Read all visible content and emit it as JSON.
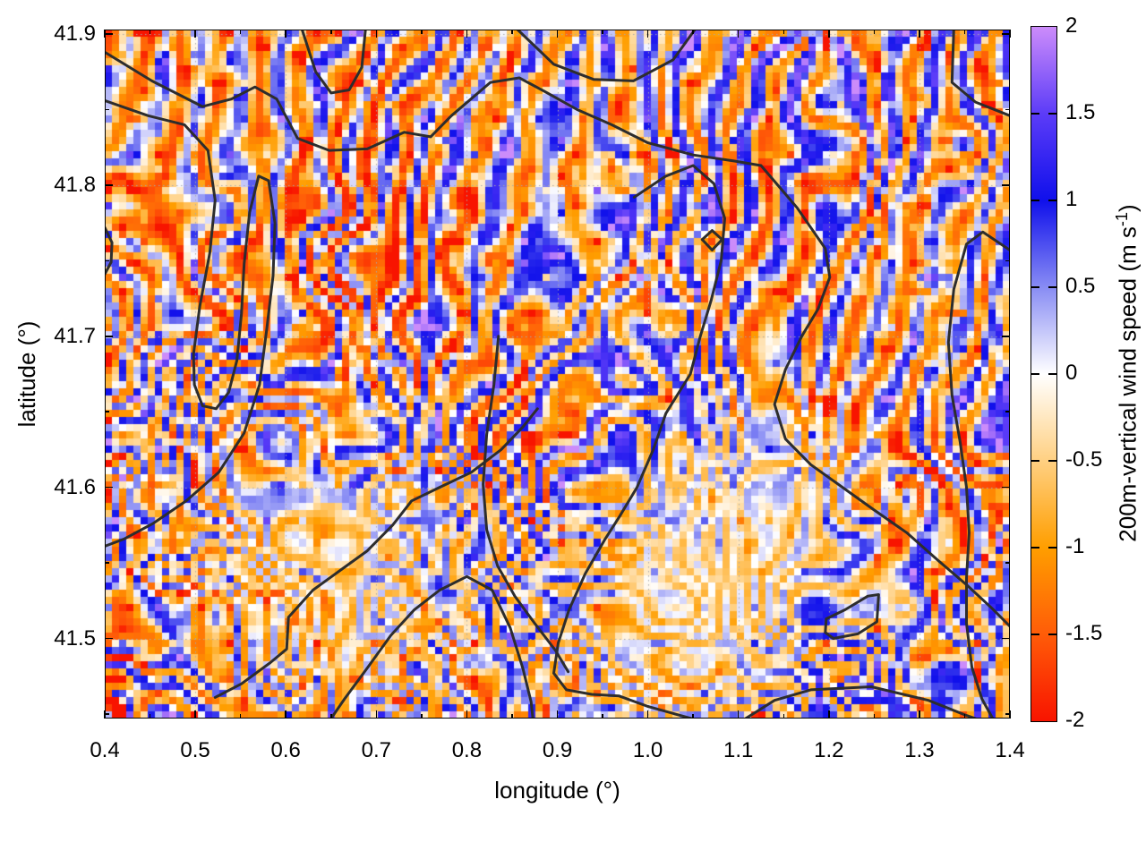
{
  "chart_data": {
    "type": "heatmap",
    "title": "",
    "xlabel": "longitude (°)",
    "ylabel": "latitude (°)",
    "x_range": [
      0.4,
      1.4
    ],
    "y_range": [
      41.447,
      41.903
    ],
    "x_major_ticks": [
      0.4,
      0.5,
      0.6,
      0.7,
      0.8,
      0.9,
      1.0,
      1.1,
      1.2,
      1.3,
      1.4
    ],
    "x_major_tick_labels": [
      "0.4",
      "0.5",
      "0.6",
      "0.7",
      "0.8",
      "0.9",
      "1.0",
      "1.1",
      "1.2",
      "1.3",
      "1.4"
    ],
    "x_minor_ticks": [
      0.45,
      0.55,
      0.65,
      0.75,
      0.85,
      0.95,
      1.05,
      1.15,
      1.25,
      1.35
    ],
    "y_major_ticks": [
      41.5,
      41.6,
      41.7,
      41.8,
      41.9
    ],
    "y_major_tick_labels": [
      "41.5",
      "41.6",
      "41.7",
      "41.8",
      "41.9"
    ],
    "y_minor_ticks": [
      41.45,
      41.55,
      41.65,
      41.75,
      41.85
    ],
    "grid": {
      "show": true,
      "style": "dotted",
      "color": "#a9a9a9"
    },
    "value_range": [
      -2,
      2
    ],
    "colorbar": {
      "label_prefix": "200m-vertical wind speed (m s",
      "label_sup": "-1",
      "label_suffix": ")",
      "range": [
        -2,
        2
      ],
      "tick_values": [
        2,
        1.5,
        1,
        0.5,
        0,
        -0.5,
        -1,
        -1.5,
        -2
      ],
      "tick_labels": [
        "2",
        "1.5",
        "1",
        "0.5",
        "0",
        "-0.5",
        "-1",
        "-1.5",
        "-2"
      ]
    },
    "colormap_stops": [
      {
        "v": -2.0,
        "c": "#f81400"
      },
      {
        "v": -1.5,
        "c": "#ff5c08"
      },
      {
        "v": -1.0,
        "c": "#ff9e00"
      },
      {
        "v": -0.5,
        "c": "#ffd082"
      },
      {
        "v": 0.0,
        "c": "#ffffff"
      },
      {
        "v": 0.5,
        "c": "#888cf4"
      },
      {
        "v": 1.0,
        "c": "#1010eb"
      },
      {
        "v": 1.5,
        "c": "#5c3cf8"
      },
      {
        "v": 2.0,
        "c": "#cc8cfa"
      }
    ],
    "field": {
      "summary": "Pixelated field (~8 px cells) of 200m vertical wind speed: narrow wavy roughly N-S/NE-SW oriented updraft streaks (blue, +0.5 to +1.5, rare violet ~+2) embedded in broader weak downdraft areas (orange, -0.3 to -1.2, rare red ~-2). A smoother pale-orange quiet zone (-0.2 to -0.5) occupies lon 0.9-1.25, lat 41.45-41.62, and a weaker one near lon 0.64, lat 41.53.",
      "generator": {
        "seed": 1337,
        "nx": 126,
        "ny": 96,
        "streak_wavelength": 5.6,
        "streak_tilt_deg": 12,
        "angle_jitter_deg": 32,
        "phase_warp": 3.1,
        "blotch_amp": 0.58,
        "base_offset": -0.18,
        "pos_gain": 1.3,
        "neg_gain": 1.02,
        "spike_amp": 2.2,
        "quiet_regions": [
          {
            "lon": 1.06,
            "lat": 41.525,
            "slon": 0.135,
            "slat": 0.075,
            "strength": 0.72,
            "fill": -0.38
          },
          {
            "lon": 0.64,
            "lat": 41.535,
            "slon": 0.1,
            "slat": 0.055,
            "strength": 0.5,
            "fill": -0.35
          }
        ]
      }
    },
    "contours": {
      "color": "#2d2d2d",
      "width": 3,
      "paths": [
        [
          [
            0.618,
            41.903
          ],
          [
            0.633,
            41.875
          ],
          [
            0.65,
            41.861
          ],
          [
            0.67,
            41.863
          ],
          [
            0.684,
            41.878
          ],
          [
            0.688,
            41.903
          ]
        ],
        [
          [
            0.856,
            41.903
          ],
          [
            0.896,
            41.88
          ],
          [
            0.94,
            41.87
          ],
          [
            0.984,
            41.869
          ],
          [
            1.028,
            41.883
          ],
          [
            1.052,
            41.903
          ]
        ],
        [
          [
            1.338,
            41.903
          ],
          [
            1.336,
            41.868
          ],
          [
            1.362,
            41.855
          ],
          [
            1.4,
            41.846
          ]
        ],
        [
          [
            0.4,
            41.888
          ],
          [
            0.452,
            41.869
          ],
          [
            0.508,
            41.852
          ],
          [
            0.54,
            41.857
          ],
          [
            0.566,
            41.865
          ],
          [
            0.59,
            41.857
          ],
          [
            0.613,
            41.831
          ],
          [
            0.648,
            41.823
          ],
          [
            0.69,
            41.824
          ],
          [
            0.731,
            41.835
          ],
          [
            0.76,
            41.832
          ],
          [
            0.783,
            41.846
          ],
          [
            0.826,
            41.868
          ],
          [
            0.858,
            41.871
          ],
          [
            0.886,
            41.862
          ],
          [
            0.922,
            41.85
          ],
          [
            0.96,
            41.84
          ],
          [
            1.0,
            41.828
          ],
          [
            1.05,
            41.82
          ],
          [
            1.095,
            41.816
          ],
          [
            1.125,
            41.813
          ],
          [
            1.165,
            41.785
          ],
          [
            1.196,
            41.758
          ],
          [
            1.201,
            41.739
          ],
          [
            1.188,
            41.718
          ],
          [
            1.17,
            41.7
          ],
          [
            1.152,
            41.678
          ],
          [
            1.14,
            41.655
          ],
          [
            1.152,
            41.632
          ],
          [
            1.18,
            41.615
          ],
          [
            1.215,
            41.6
          ],
          [
            1.25,
            41.585
          ],
          [
            1.286,
            41.57
          ],
          [
            1.32,
            41.552
          ],
          [
            1.353,
            41.535
          ],
          [
            1.38,
            41.52
          ],
          [
            1.4,
            41.508
          ]
        ],
        [
          [
            0.4,
            41.856
          ],
          [
            0.448,
            41.846
          ],
          [
            0.488,
            41.84
          ],
          [
            0.514,
            41.823
          ],
          [
            0.522,
            41.79
          ],
          [
            0.516,
            41.755
          ],
          [
            0.505,
            41.72
          ],
          [
            0.498,
            41.688
          ],
          [
            0.499,
            41.668
          ],
          [
            0.508,
            41.654
          ],
          [
            0.523,
            41.652
          ],
          [
            0.537,
            41.663
          ],
          [
            0.546,
            41.684
          ],
          [
            0.551,
            41.715
          ],
          [
            0.554,
            41.748
          ],
          [
            0.56,
            41.782
          ],
          [
            0.57,
            41.806
          ],
          [
            0.581,
            41.803
          ],
          [
            0.588,
            41.775
          ],
          [
            0.586,
            41.74
          ],
          [
            0.579,
            41.705
          ],
          [
            0.571,
            41.668
          ],
          [
            0.554,
            41.636
          ],
          [
            0.526,
            41.61
          ],
          [
            0.49,
            41.591
          ],
          [
            0.453,
            41.576
          ],
          [
            0.422,
            41.566
          ],
          [
            0.4,
            41.561
          ]
        ],
        [
          [
            0.985,
            41.792
          ],
          [
            1.02,
            41.806
          ],
          [
            1.05,
            41.813
          ],
          [
            1.073,
            41.801
          ],
          [
            1.085,
            41.778
          ],
          [
            1.081,
            41.75
          ],
          [
            1.07,
            41.724
          ],
          [
            1.058,
            41.7
          ],
          [
            1.047,
            41.675
          ],
          [
            1.02,
            41.649
          ],
          [
            1.006,
            41.625
          ],
          [
            0.988,
            41.6
          ],
          [
            0.969,
            41.581
          ],
          [
            0.952,
            41.565
          ],
          [
            0.931,
            41.543
          ],
          [
            0.913,
            41.519
          ],
          [
            0.901,
            41.497
          ],
          [
            0.896,
            41.477
          ],
          [
            0.91,
            41.466
          ],
          [
            0.938,
            41.463
          ],
          [
            0.968,
            41.462
          ],
          [
            1.0,
            41.455
          ],
          [
            1.03,
            41.45
          ],
          [
            1.048,
            41.447
          ]
        ],
        [
          [
            1.06,
            41.764
          ],
          [
            1.071,
            41.757
          ],
          [
            1.082,
            41.764
          ],
          [
            1.071,
            41.77
          ],
          [
            1.06,
            41.764
          ]
        ],
        [
          [
            0.522,
            41.461
          ],
          [
            0.551,
            41.47
          ],
          [
            0.583,
            41.484
          ],
          [
            0.601,
            41.493
          ],
          [
            0.603,
            41.514
          ],
          [
            0.63,
            41.532
          ],
          [
            0.66,
            41.545
          ],
          [
            0.69,
            41.558
          ],
          [
            0.718,
            41.575
          ],
          [
            0.739,
            41.591
          ],
          [
            0.77,
            41.6
          ],
          [
            0.805,
            41.61
          ],
          [
            0.838,
            41.625
          ],
          [
            0.862,
            41.64
          ],
          [
            0.878,
            41.652
          ]
        ],
        [
          [
            0.65,
            41.447
          ],
          [
            0.665,
            41.46
          ],
          [
            0.692,
            41.482
          ],
          [
            0.716,
            41.502
          ],
          [
            0.742,
            41.519
          ],
          [
            0.77,
            41.532
          ],
          [
            0.8,
            41.541
          ],
          [
            0.828,
            41.532
          ],
          [
            0.848,
            41.507
          ],
          [
            0.862,
            41.48
          ],
          [
            0.871,
            41.458
          ],
          [
            0.873,
            41.447
          ]
        ],
        [
          [
            0.835,
            41.7
          ],
          [
            0.83,
            41.668
          ],
          [
            0.822,
            41.635
          ],
          [
            0.818,
            41.602
          ],
          [
            0.822,
            41.572
          ],
          [
            0.834,
            41.548
          ],
          [
            0.853,
            41.528
          ],
          [
            0.875,
            41.51
          ],
          [
            0.898,
            41.492
          ],
          [
            0.912,
            41.478
          ]
        ],
        [
          [
            1.196,
            41.504
          ],
          [
            1.197,
            41.513
          ],
          [
            1.218,
            41.519
          ],
          [
            1.243,
            41.528
          ],
          [
            1.255,
            41.529
          ],
          [
            1.253,
            41.511
          ],
          [
            1.232,
            41.503
          ],
          [
            1.205,
            41.5
          ],
          [
            1.196,
            41.504
          ]
        ],
        [
          [
            1.108,
            41.447
          ],
          [
            1.14,
            41.459
          ],
          [
            1.18,
            41.466
          ],
          [
            1.247,
            41.468
          ],
          [
            1.31,
            41.459
          ],
          [
            1.352,
            41.449
          ],
          [
            1.362,
            41.447
          ]
        ],
        [
          [
            0.4,
            41.772
          ],
          [
            0.408,
            41.762
          ],
          [
            0.407,
            41.749
          ],
          [
            0.4,
            41.741
          ]
        ],
        [
          [
            1.4,
            41.757
          ],
          [
            1.37,
            41.769
          ],
          [
            1.352,
            41.761
          ],
          [
            1.338,
            41.731
          ],
          [
            1.332,
            41.696
          ],
          [
            1.336,
            41.661
          ],
          [
            1.345,
            41.63
          ],
          [
            1.352,
            41.6
          ],
          [
            1.355,
            41.57
          ],
          [
            1.352,
            41.54
          ],
          [
            1.352,
            41.51
          ],
          [
            1.358,
            41.481
          ],
          [
            1.369,
            41.46
          ],
          [
            1.381,
            41.447
          ]
        ]
      ]
    }
  }
}
